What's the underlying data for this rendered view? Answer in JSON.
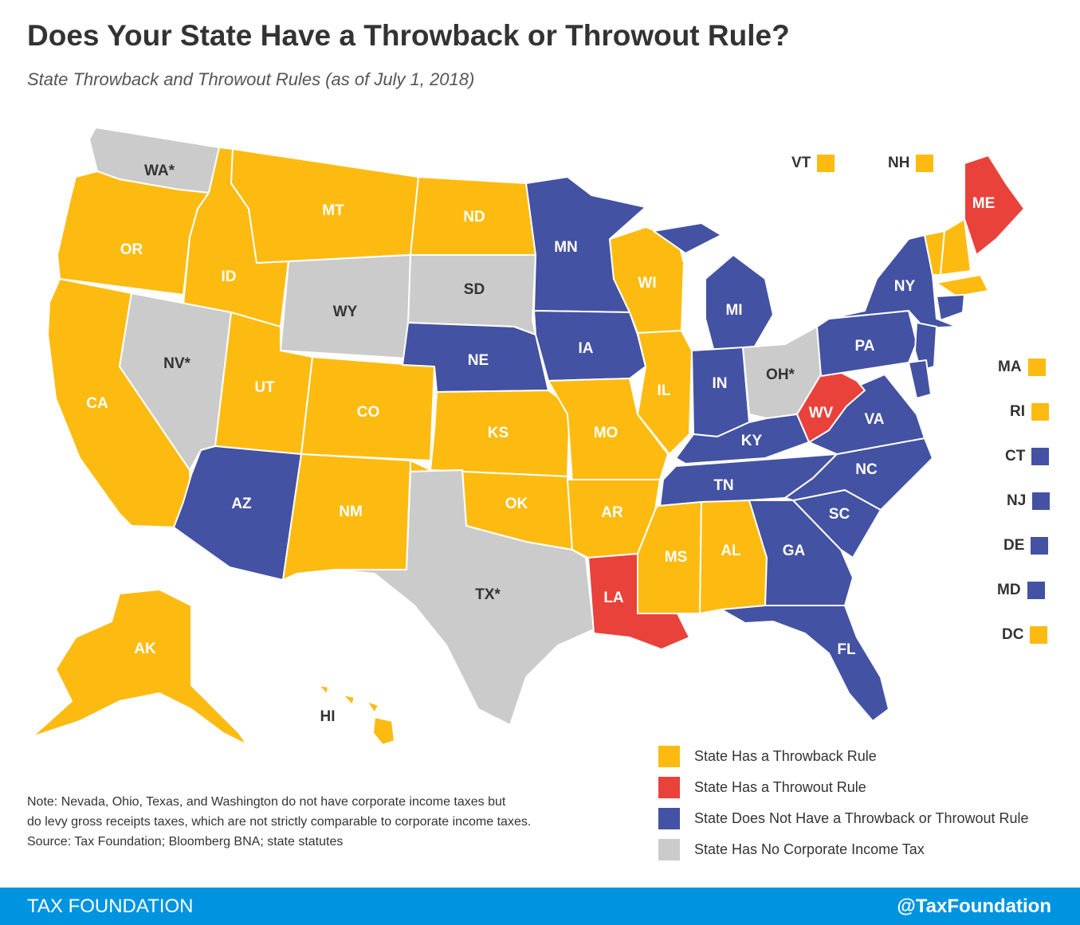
{
  "title": "Does Your State Have a Throwback or Throwout Rule?",
  "subtitle": "State Throwback and Throwout Rules (as of July 1, 2018)",
  "colors": {
    "throwback": "#fdbb12",
    "throwout": "#e8423a",
    "none": "#4352a2",
    "no_cit": "#cbcbcb"
  },
  "states": [
    {
      "abbr": "WA*",
      "cat": "no_cit"
    },
    {
      "abbr": "OR",
      "cat": "throwback"
    },
    {
      "abbr": "CA",
      "cat": "throwback"
    },
    {
      "abbr": "ID",
      "cat": "throwback"
    },
    {
      "abbr": "NV*",
      "cat": "no_cit"
    },
    {
      "abbr": "MT",
      "cat": "throwback"
    },
    {
      "abbr": "WY",
      "cat": "no_cit"
    },
    {
      "abbr": "UT",
      "cat": "throwback"
    },
    {
      "abbr": "AZ",
      "cat": "none"
    },
    {
      "abbr": "CO",
      "cat": "throwback"
    },
    {
      "abbr": "NM",
      "cat": "throwback"
    },
    {
      "abbr": "ND",
      "cat": "throwback"
    },
    {
      "abbr": "SD",
      "cat": "no_cit"
    },
    {
      "abbr": "NE",
      "cat": "none"
    },
    {
      "abbr": "KS",
      "cat": "throwback"
    },
    {
      "abbr": "OK",
      "cat": "throwback"
    },
    {
      "abbr": "TX*",
      "cat": "no_cit"
    },
    {
      "abbr": "MN",
      "cat": "none"
    },
    {
      "abbr": "IA",
      "cat": "none"
    },
    {
      "abbr": "MO",
      "cat": "throwback"
    },
    {
      "abbr": "AR",
      "cat": "throwback"
    },
    {
      "abbr": "LA",
      "cat": "throwout"
    },
    {
      "abbr": "WI",
      "cat": "throwback"
    },
    {
      "abbr": "IL",
      "cat": "throwback"
    },
    {
      "abbr": "MI",
      "cat": "none"
    },
    {
      "abbr": "IN",
      "cat": "none"
    },
    {
      "abbr": "OH*",
      "cat": "no_cit"
    },
    {
      "abbr": "KY",
      "cat": "none"
    },
    {
      "abbr": "TN",
      "cat": "none"
    },
    {
      "abbr": "MS",
      "cat": "throwback"
    },
    {
      "abbr": "AL",
      "cat": "throwback"
    },
    {
      "abbr": "GA",
      "cat": "none"
    },
    {
      "abbr": "FL",
      "cat": "none"
    },
    {
      "abbr": "SC",
      "cat": "none"
    },
    {
      "abbr": "NC",
      "cat": "none"
    },
    {
      "abbr": "VA",
      "cat": "none"
    },
    {
      "abbr": "WV",
      "cat": "throwout"
    },
    {
      "abbr": "PA",
      "cat": "none"
    },
    {
      "abbr": "NY",
      "cat": "none"
    },
    {
      "abbr": "ME",
      "cat": "throwout"
    },
    {
      "abbr": "AK",
      "cat": "throwback"
    },
    {
      "abbr": "HI",
      "cat": "throwback"
    }
  ],
  "small_states": [
    {
      "abbr": "VT",
      "cat": "throwback"
    },
    {
      "abbr": "NH",
      "cat": "throwback"
    },
    {
      "abbr": "MA",
      "cat": "throwback"
    },
    {
      "abbr": "RI",
      "cat": "throwback"
    },
    {
      "abbr": "CT",
      "cat": "none"
    },
    {
      "abbr": "NJ",
      "cat": "none"
    },
    {
      "abbr": "DE",
      "cat": "none"
    },
    {
      "abbr": "MD",
      "cat": "none"
    },
    {
      "abbr": "DC",
      "cat": "throwback"
    }
  ],
  "legend": [
    {
      "label": "State Has a Throwback Rule",
      "cat": "throwback"
    },
    {
      "label": "State Has a Throwout Rule",
      "cat": "throwout"
    },
    {
      "label": "State Does Not Have a Throwback or Throwout Rule",
      "cat": "none"
    },
    {
      "label": "State Has No Corporate Income Tax",
      "cat": "no_cit"
    }
  ],
  "note_lines": [
    "Note: Nevada, Ohio, Texas, and Washington do not have corporate income taxes but",
    "do levy gross receipts taxes, which are not strictly comparable to corporate income taxes.",
    "Source: Tax Foundation; Bloomberg BNA; state statutes"
  ],
  "footer": {
    "brand": "TAX FOUNDATION",
    "handle": "@TaxFoundation"
  }
}
